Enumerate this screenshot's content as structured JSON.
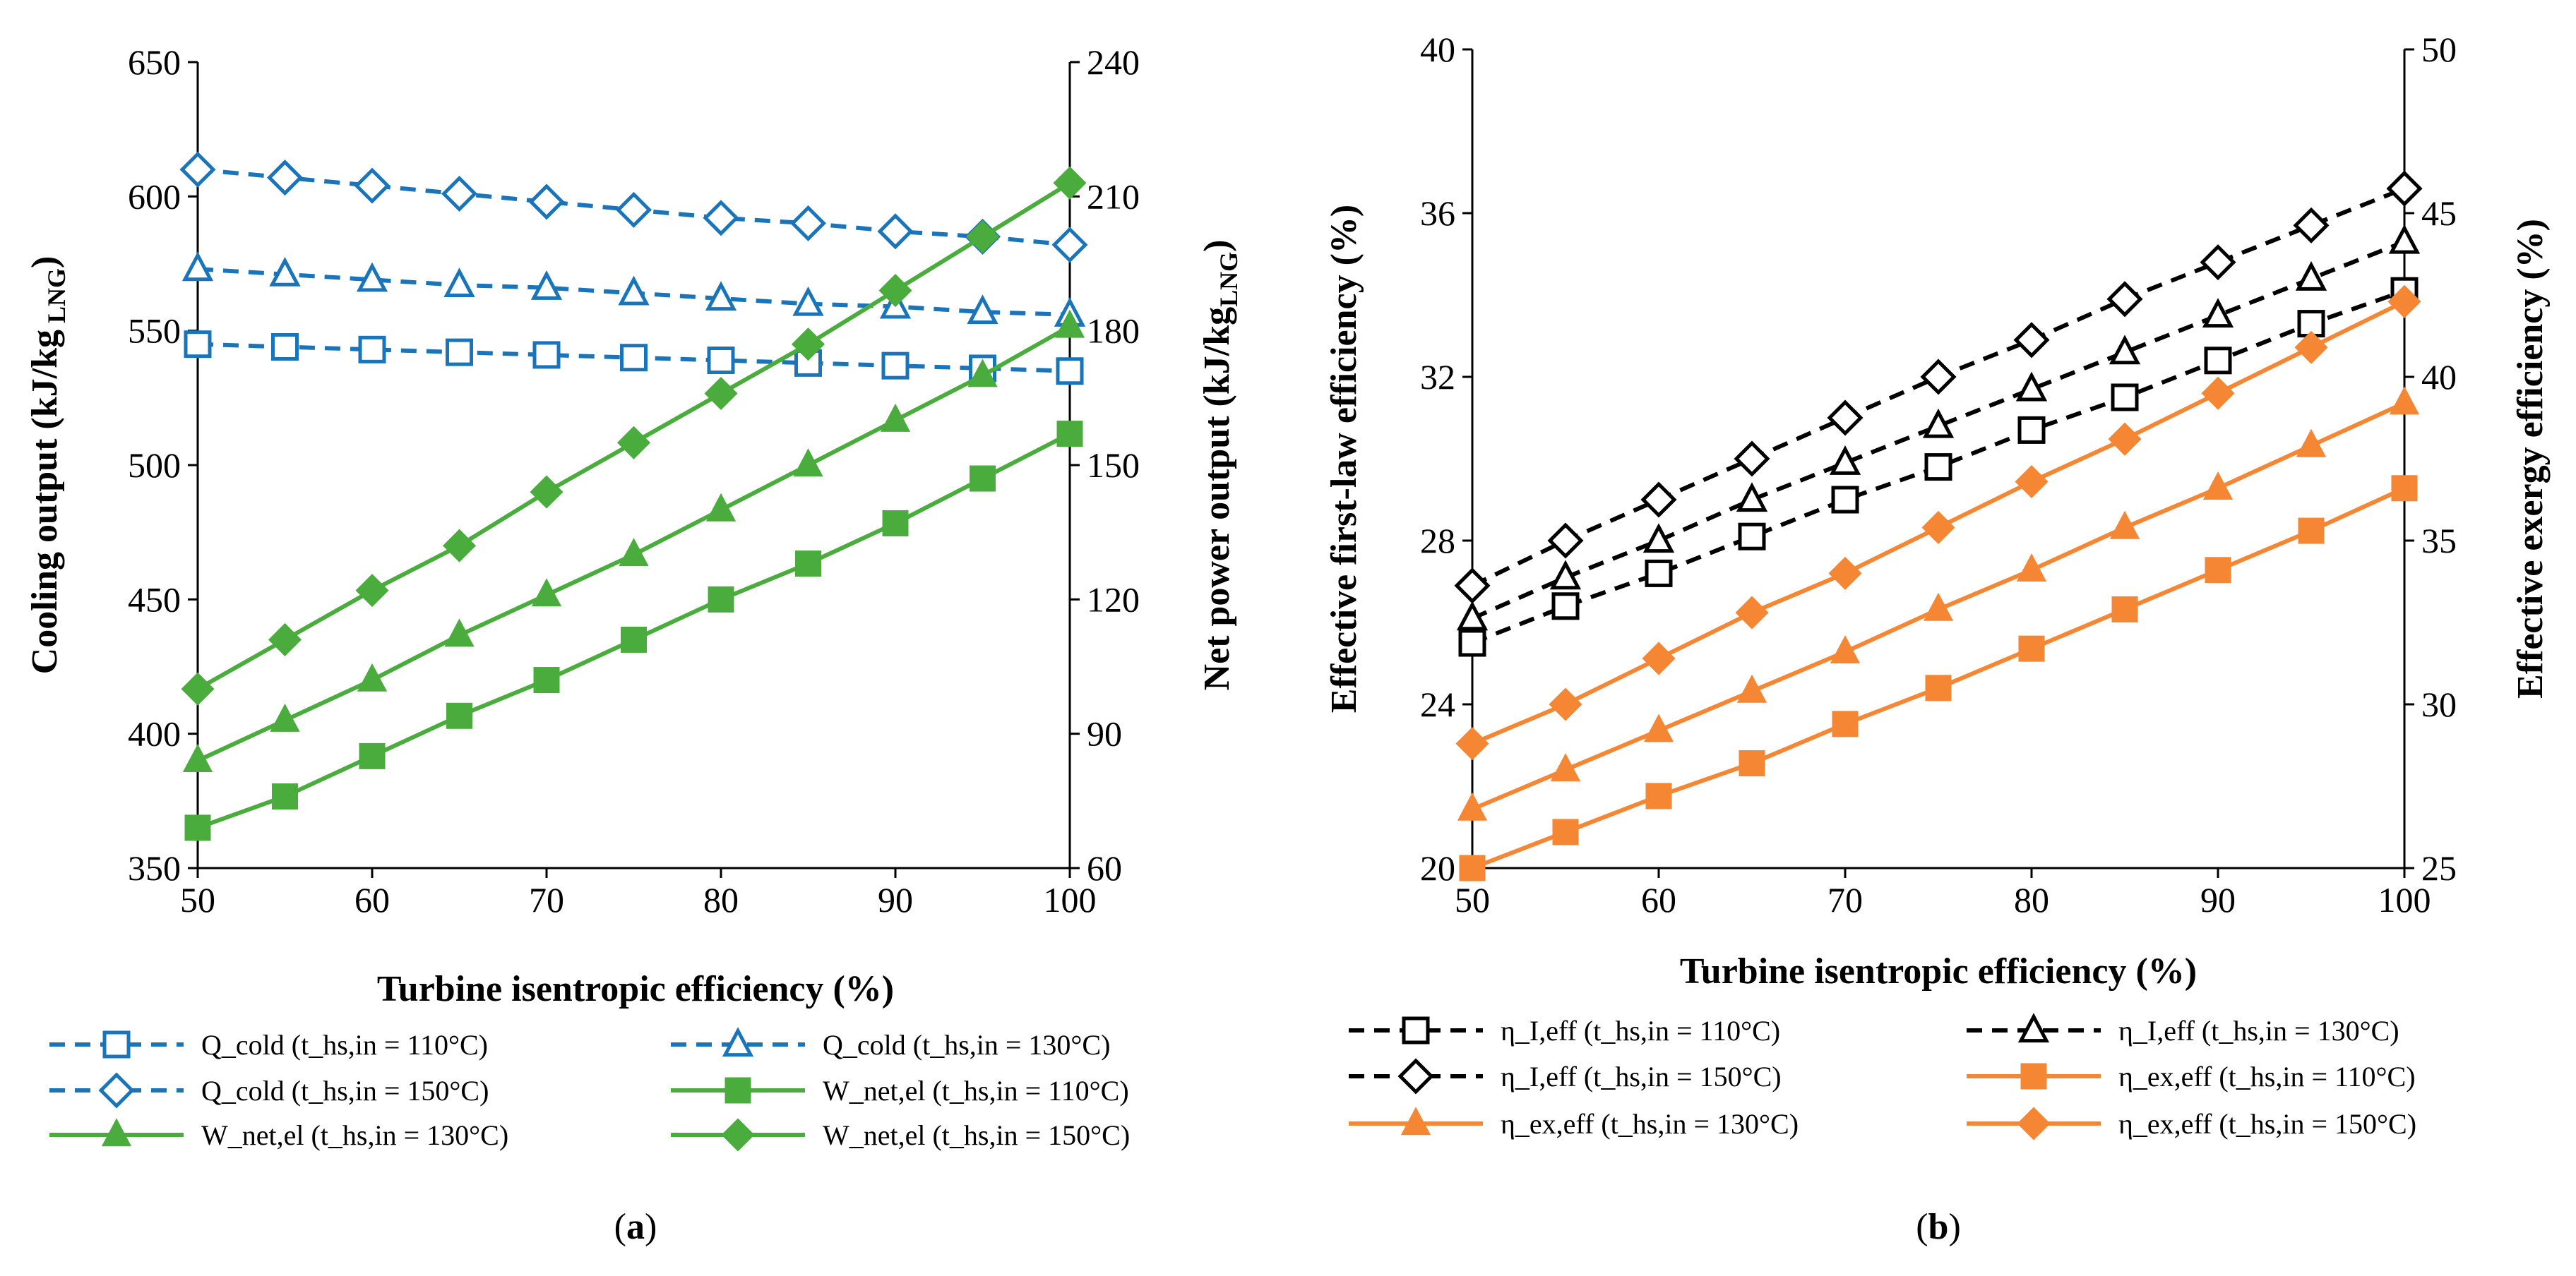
{
  "chart_data": [
    {
      "type": "line",
      "panel": "a",
      "caption_open": "(",
      "caption_letter": "a",
      "caption_close": ")",
      "xlabel": "Turbine isentropic efficiency (%)",
      "ylabel_main": "Cooling output (kJ/kg",
      "ylabel_sub": "LNG",
      "ylabel_close": ")",
      "y2label_main": "Net power output (kJ/kg",
      "y2label_sub": "LNG",
      "y2label_close": ")",
      "xlim": [
        50,
        100
      ],
      "ylim": [
        350,
        650
      ],
      "y2lim": [
        60,
        240
      ],
      "x_ticks": [
        "50",
        "60",
        "70",
        "80",
        "90",
        "100"
      ],
      "y_ticks": [
        "350",
        "400",
        "450",
        "500",
        "550",
        "600",
        "650"
      ],
      "y2_ticks": [
        "60",
        "90",
        "120",
        "150",
        "180",
        "210",
        "240"
      ],
      "x": [
        50,
        55,
        60,
        65,
        70,
        75,
        80,
        85,
        90,
        95,
        100
      ],
      "series": [
        {
          "name": "Q_cold (t_hs,in = 110°C)",
          "axis": "left",
          "color": "#1a74b9",
          "dash": true,
          "marker": "square",
          "values": [
            545,
            544,
            543,
            542,
            541,
            540,
            539,
            538,
            537,
            536,
            535
          ]
        },
        {
          "name": "Q_cold (t_hs,in = 130°C)",
          "axis": "left",
          "color": "#1a74b9",
          "dash": true,
          "marker": "triangle",
          "values": [
            573,
            571,
            569,
            567,
            566,
            564,
            562,
            560,
            559,
            557,
            556
          ]
        },
        {
          "name": "Q_cold (t_hs,in = 150°C)",
          "axis": "left",
          "color": "#1a74b9",
          "dash": true,
          "marker": "diamond",
          "values": [
            610,
            607,
            604,
            601,
            598,
            595,
            592,
            590,
            587,
            585,
            582
          ]
        },
        {
          "name": "W_net,el (t_hs,in = 110°C)",
          "axis": "right",
          "color": "#4aac3c",
          "dash": false,
          "marker": "square-filled",
          "values": [
            69,
            76,
            85,
            94,
            102,
            111,
            120,
            128,
            137,
            147,
            157
          ]
        },
        {
          "name": "W_net,el (t_hs,in = 130°C)",
          "axis": "right",
          "color": "#4aac3c",
          "dash": false,
          "marker": "triangle-filled",
          "values": [
            84,
            93,
            102,
            112,
            121,
            130,
            140,
            150,
            160,
            170,
            181
          ]
        },
        {
          "name": "W_net,el (t_hs,in = 150°C)",
          "axis": "right",
          "color": "#4aac3c",
          "dash": false,
          "marker": "diamond-filled",
          "values": [
            100,
            111,
            122,
            132,
            144,
            155,
            166,
            177,
            189,
            201,
            213
          ]
        }
      ]
    },
    {
      "type": "line",
      "panel": "b",
      "caption_open": "(",
      "caption_letter": "b",
      "caption_close": ")",
      "xlabel": "Turbine isentropic efficiency (%)",
      "ylabel": "Effective first-law efficiency (%)",
      "y2label": "Effective exergy efficiency (%)",
      "xlim": [
        50,
        100
      ],
      "ylim": [
        20,
        40
      ],
      "y2lim": [
        25,
        50
      ],
      "x_ticks": [
        "50",
        "60",
        "70",
        "80",
        "90",
        "100"
      ],
      "y_ticks": [
        "20",
        "24",
        "28",
        "32",
        "36",
        "40"
      ],
      "y2_ticks": [
        "25",
        "30",
        "35",
        "40",
        "45",
        "50"
      ],
      "x": [
        50,
        55,
        60,
        65,
        70,
        75,
        80,
        85,
        90,
        95,
        100
      ],
      "series": [
        {
          "name": "η_I,eff (t_hs,in = 110°C)",
          "axis": "left",
          "color": "#000000",
          "dash": true,
          "marker": "square",
          "values": [
            25.5,
            26.4,
            27.2,
            28.1,
            29.0,
            29.8,
            30.7,
            31.5,
            32.4,
            33.3,
            34.1
          ]
        },
        {
          "name": "η_I,eff (t_hs,in = 130°C)",
          "axis": "left",
          "color": "#000000",
          "dash": true,
          "marker": "triangle",
          "values": [
            26.1,
            27.1,
            28.0,
            29.0,
            29.9,
            30.8,
            31.7,
            32.6,
            33.5,
            34.4,
            35.3
          ]
        },
        {
          "name": "η_I,eff (t_hs,in = 150°C)",
          "axis": "left",
          "color": "#000000",
          "dash": true,
          "marker": "diamond",
          "values": [
            26.9,
            28.0,
            29.0,
            30.0,
            31.0,
            32.0,
            32.9,
            33.9,
            34.8,
            35.7,
            36.6
          ]
        },
        {
          "name": "η_ex,eff (t_hs,in = 110°C)",
          "axis": "right",
          "color": "#f58634",
          "dash": false,
          "marker": "square-filled",
          "values": [
            25.0,
            26.1,
            27.2,
            28.2,
            29.4,
            30.5,
            31.7,
            32.9,
            34.1,
            35.3,
            36.6
          ]
        },
        {
          "name": "η_ex,eff (t_hs,in = 130°C)",
          "axis": "right",
          "color": "#f58634",
          "dash": false,
          "marker": "triangle-filled",
          "values": [
            26.8,
            28.0,
            29.2,
            30.4,
            31.6,
            32.9,
            34.1,
            35.4,
            36.6,
            37.9,
            39.2
          ]
        },
        {
          "name": "η_ex,eff (t_hs,in = 150°C)",
          "axis": "right",
          "color": "#f58634",
          "dash": false,
          "marker": "diamond-filled",
          "values": [
            28.8,
            30.0,
            31.4,
            32.8,
            34.0,
            35.4,
            36.8,
            38.1,
            39.5,
            40.9,
            42.3
          ]
        }
      ]
    }
  ]
}
